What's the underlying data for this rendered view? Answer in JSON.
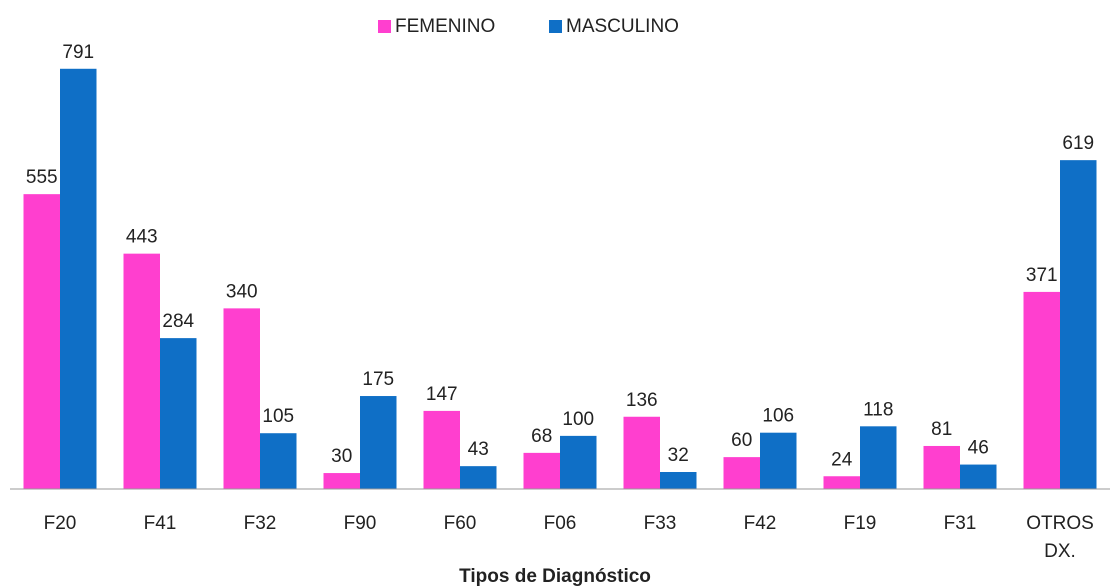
{
  "chart_data": {
    "type": "bar",
    "x_label": "Tipos de Diagnóstico",
    "categories": [
      "F20",
      "F41",
      "F32",
      "F90",
      "F60",
      "F06",
      "F33",
      "F42",
      "F19",
      "F31",
      "OTROS DX."
    ],
    "series": [
      {
        "name": "FEMENINO",
        "color": "#ff3fcf",
        "values": [
          555,
          443,
          340,
          30,
          147,
          68,
          136,
          60,
          24,
          81,
          371
        ]
      },
      {
        "name": "MASCULINO",
        "color": "#0f6fc6",
        "values": [
          791,
          284,
          105,
          175,
          43,
          100,
          32,
          106,
          118,
          46,
          619
        ]
      }
    ],
    "ylim": [
      0,
      800
    ],
    "legend": "top"
  }
}
